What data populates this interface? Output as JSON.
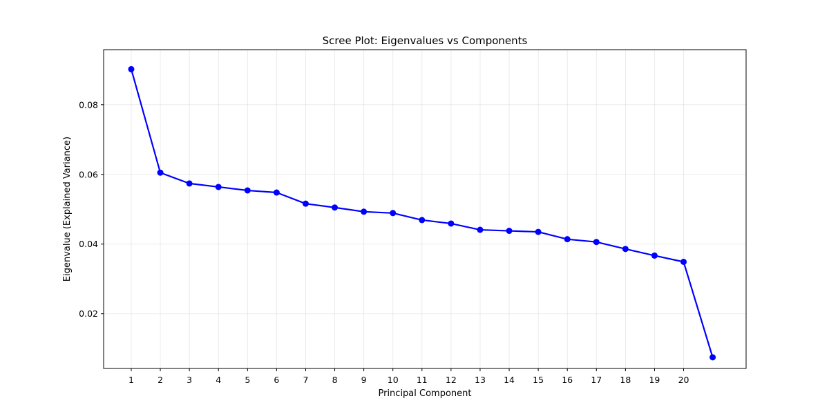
{
  "chart_data": {
    "type": "line",
    "title": "Scree Plot: Eigenvalues vs Components",
    "xlabel": "Principal Component",
    "ylabel": "Eigenvalue (Explained Variance)",
    "xlim": [
      0.05,
      22.15
    ],
    "ylim": [
      0.0043,
      0.0958
    ],
    "x_ticks": [
      1,
      2,
      3,
      4,
      5,
      6,
      7,
      8,
      9,
      10,
      11,
      12,
      13,
      14,
      15,
      16,
      17,
      18,
      19,
      20
    ],
    "x_tick_labels": [
      "1",
      "2",
      "3",
      "4",
      "5",
      "6",
      "7",
      "8",
      "9",
      "10",
      "11",
      "12",
      "13",
      "14",
      "15",
      "16",
      "17",
      "18",
      "19",
      "20"
    ],
    "y_ticks": [
      0.02,
      0.04,
      0.06,
      0.08
    ],
    "y_tick_labels": [
      "0.02",
      "0.04",
      "0.06",
      "0.08"
    ],
    "grid": true,
    "series": [
      {
        "color": "#0000ff",
        "marker": "circle",
        "x": [
          1,
          2,
          3,
          4,
          5,
          6,
          7,
          8,
          9,
          10,
          11,
          12,
          13,
          14,
          15,
          16,
          17,
          18,
          19,
          20,
          21
        ],
        "values": [
          0.0902,
          0.0605,
          0.0574,
          0.0564,
          0.0554,
          0.0548,
          0.0516,
          0.0505,
          0.0493,
          0.0489,
          0.0469,
          0.0459,
          0.0441,
          0.0438,
          0.0435,
          0.0414,
          0.0406,
          0.0386,
          0.0367,
          0.0349,
          0.0075
        ]
      }
    ]
  }
}
